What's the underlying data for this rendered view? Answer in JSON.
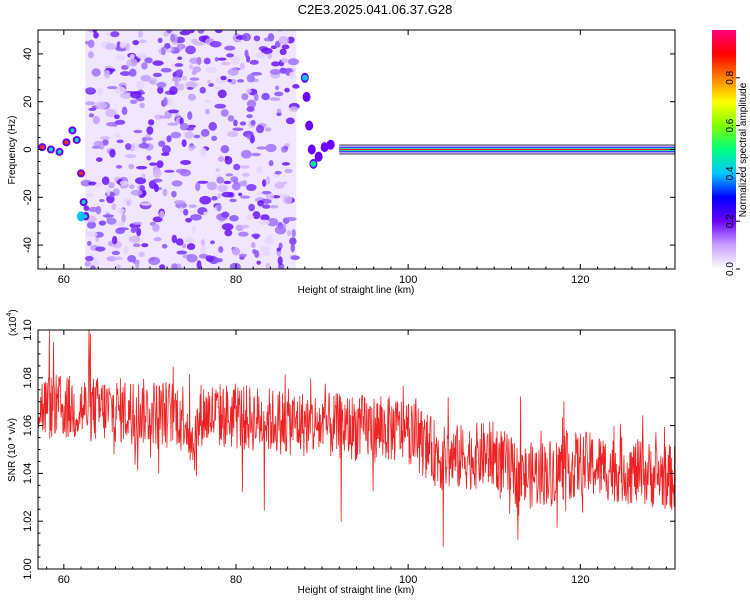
{
  "title": "C2E3.2025.041.06.37.G28",
  "chart_data": [
    {
      "type": "heatmap",
      "xlabel": "Height of straight line (km)",
      "ylabel": "Frequency (Hz)",
      "xlim": [
        57,
        131
      ],
      "ylim": [
        -50,
        50
      ],
      "x_ticks": [
        "60",
        "80",
        "100",
        "120"
      ],
      "y_ticks": [
        "40",
        "20",
        "0",
        "-20",
        "-40"
      ],
      "colorbar": {
        "label": "Normalized spectral amplitude",
        "range": [
          0,
          1
        ],
        "ticks": [
          "0.0",
          "0.2",
          "0.4",
          "0.6",
          "0.8"
        ],
        "colors": [
          "#ffffff",
          "#c8a0ff",
          "#6a00ff",
          "#0000ff",
          "#00c8ff",
          "#00ff80",
          "#80ff00",
          "#ffff00",
          "#ff8000",
          "#ff0000",
          "#ff0080"
        ]
      },
      "features": {
        "scatter_region_x": [
          62.5,
          87
        ],
        "stable_line_x": [
          92,
          131
        ],
        "stable_line_freq": 0,
        "spike_top": {
          "x": 88,
          "freq": 30
        },
        "spike_bottom": {
          "x": 62,
          "freq": -28
        }
      }
    },
    {
      "type": "line",
      "xlabel": "Height of straight line (km)",
      "ylabel": "SNR (10 * v/v)",
      "scale_note": "(x10",
      "scale_exp": "4",
      "xlim": [
        57,
        131
      ],
      "ylim": [
        1.0,
        1.1
      ],
      "x_ticks": [
        "60",
        "80",
        "100",
        "120"
      ],
      "y_ticks": [
        "1.10",
        "1.08",
        "1.06",
        "1.04",
        "1.02",
        "1.00"
      ],
      "color": "#ee2222",
      "trend": [
        {
          "x": 57,
          "y": 1.068
        },
        {
          "x": 74,
          "y": 1.065
        },
        {
          "x": 75,
          "y": 1.052
        },
        {
          "x": 76,
          "y": 1.065
        },
        {
          "x": 90,
          "y": 1.06
        },
        {
          "x": 100,
          "y": 1.058
        },
        {
          "x": 104,
          "y": 1.046
        },
        {
          "x": 110,
          "y": 1.048
        },
        {
          "x": 113,
          "y": 1.038
        },
        {
          "x": 120,
          "y": 1.044
        },
        {
          "x": 131,
          "y": 1.038
        }
      ]
    }
  ]
}
